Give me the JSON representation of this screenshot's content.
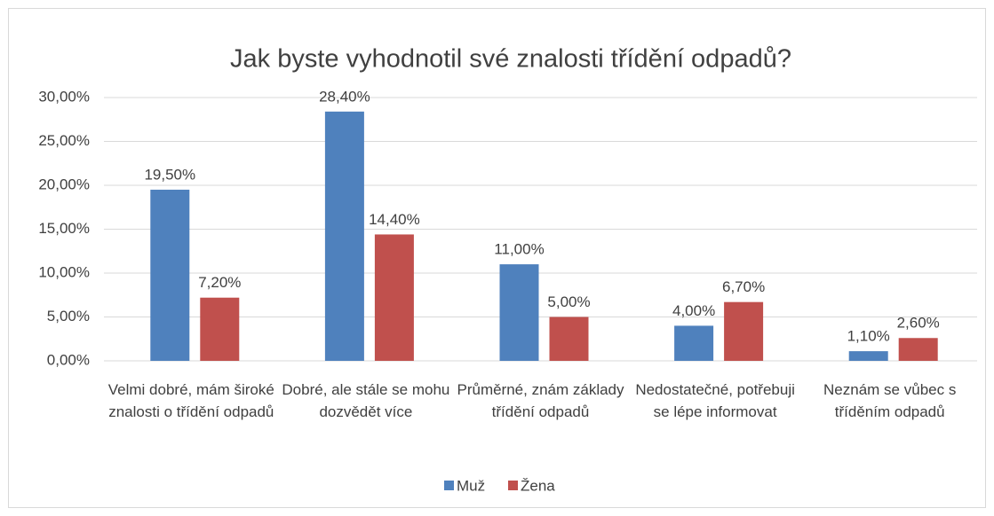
{
  "chart_data": {
    "type": "bar",
    "title": "Jak byste vyhodnotil své znalosti třídění odpadů?",
    "categories": [
      "Velmi dobré, mám široké znalosti o třídění odpadů",
      "Dobré, ale stále se mohu dozvědět více",
      "Průměrné, znám základy třídění odpadů",
      "Nedostatečné, potřebuji se lépe informovat",
      "Neznám se vůbec s tříděním odpadů"
    ],
    "series": [
      {
        "name": "Muž",
        "color": "#4f81bd",
        "values": [
          19.5,
          28.4,
          11.0,
          4.0,
          1.1
        ],
        "value_labels": [
          "19,50%",
          "28,40%",
          "11,00%",
          "4,00%",
          "1,10%"
        ]
      },
      {
        "name": "Žena",
        "color": "#c0504d",
        "values": [
          7.2,
          14.4,
          5.0,
          6.7,
          2.6
        ],
        "value_labels": [
          "7,20%",
          "14,40%",
          "5,00%",
          "6,70%",
          "2,60%"
        ]
      }
    ],
    "ylim": [
      0,
      30
    ],
    "yticks": [
      {
        "value": 0,
        "label": "0,00%"
      },
      {
        "value": 5,
        "label": "5,00%"
      },
      {
        "value": 10,
        "label": "10,00%"
      },
      {
        "value": 15,
        "label": "15,00%"
      },
      {
        "value": 20,
        "label": "20,00%"
      },
      {
        "value": 25,
        "label": "25,00%"
      },
      {
        "value": 30,
        "label": "30,00%"
      }
    ],
    "grid": true,
    "legend": "bottom"
  }
}
